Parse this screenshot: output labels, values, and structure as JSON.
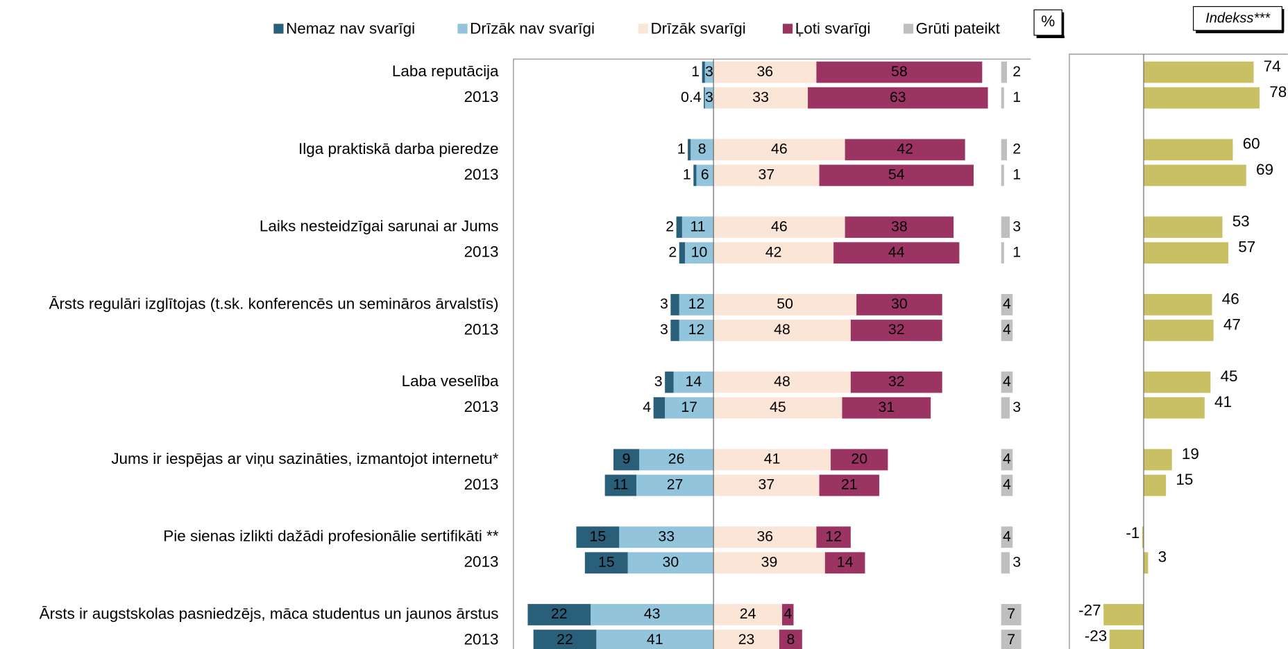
{
  "chart_data": [
    {
      "type": "diverging_bar",
      "annotation": "%",
      "categories": [
        "Laba reputācija",
        "2013",
        "Ilga praktiskā darba pieredze",
        "2013",
        "Laiks nesteidzīgai sarunai ar Jums ",
        "2013",
        "Ārsts regulāri izglītojas (t.sk. konferencēs un semināros ārvalstīs)",
        "2013",
        "Laba veselība",
        "2013",
        "Jums ir iespējas ar viņu sazināties, izmantojot internetu*",
        "2013",
        "Pie sienas izlikti dažādi profesionālie sertifikāti **",
        "2013",
        "Ārsts ir augstskolas pasniedzējs, māca studentus un jaunos ārstus",
        "2013"
      ],
      "series": [
        {
          "name": "Nemaz nav svarīgi",
          "color": "#2a5f7a",
          "values": [
            1,
            0.4,
            1,
            1,
            2,
            2,
            3,
            3,
            3,
            4,
            9,
            11,
            15,
            15,
            22,
            22
          ]
        },
        {
          "name": "Drīzāk nav svarīgi",
          "color": "#92c5dc",
          "values": [
            3,
            3,
            8,
            6,
            11,
            10,
            12,
            12,
            14,
            17,
            26,
            27,
            33,
            30,
            43,
            41
          ]
        },
        {
          "name": "Drīzāk svarīgi",
          "color": "#fbe5d6",
          "values": [
            36,
            33,
            46,
            37,
            46,
            42,
            50,
            48,
            48,
            45,
            41,
            37,
            36,
            39,
            24,
            23
          ]
        },
        {
          "name": "Ļoti svarīgi",
          "color": "#9b3363",
          "values": [
            58,
            63,
            42,
            54,
            38,
            44,
            30,
            32,
            32,
            31,
            20,
            21,
            12,
            14,
            4,
            8
          ]
        },
        {
          "name": "Grūti pateikt",
          "color": "#bfbfbf",
          "values": [
            2,
            1,
            2,
            1,
            3,
            1,
            4,
            4,
            4,
            3,
            4,
            4,
            4,
            3,
            7,
            7
          ]
        }
      ],
      "xlim": [
        -70,
        111
      ]
    },
    {
      "type": "bar",
      "title": "Indekss***",
      "color": "#c9c063",
      "values": [
        74,
        78,
        60,
        69,
        53,
        57,
        46,
        47,
        45,
        41,
        19,
        15,
        -1,
        3,
        -27,
        -23
      ],
      "xlim": [
        -50,
        97
      ]
    }
  ]
}
